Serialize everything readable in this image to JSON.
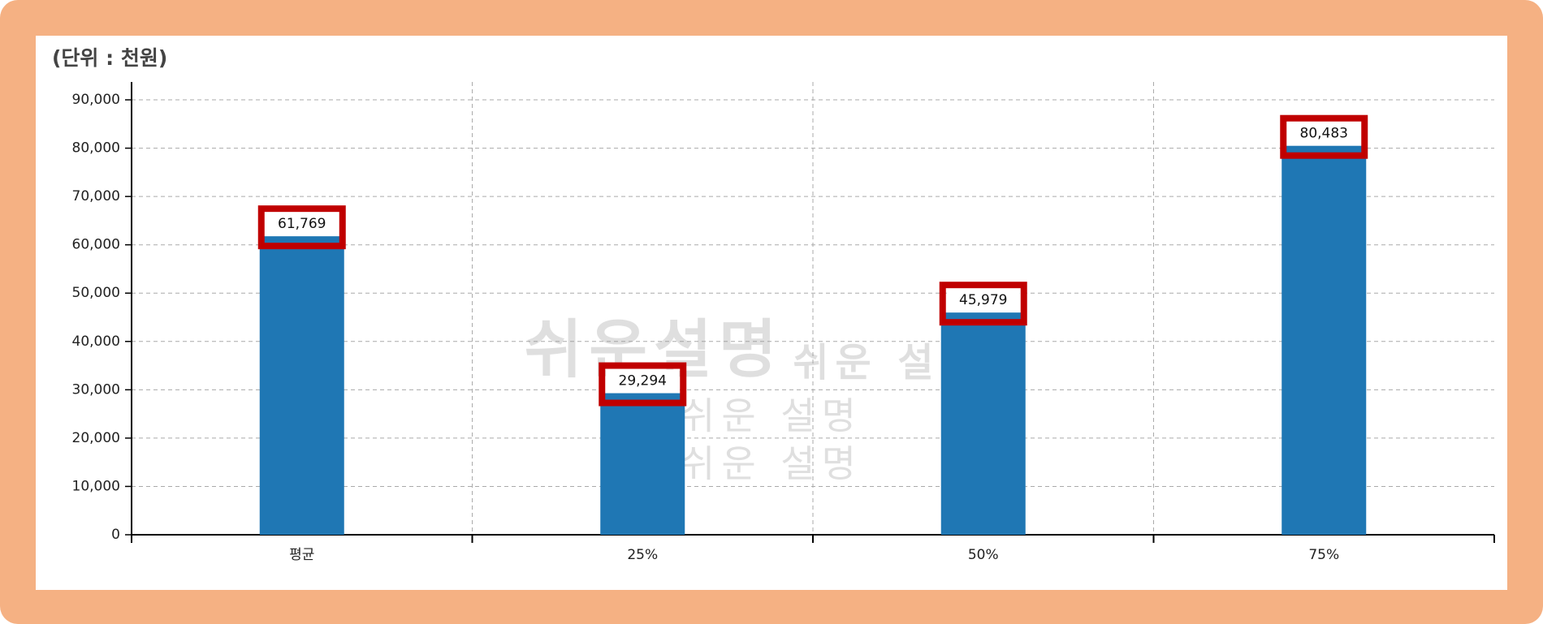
{
  "chart_data": {
    "type": "bar",
    "unit_label": "(단위 : 천원)",
    "categories": [
      "평균",
      "25%",
      "50%",
      "75%"
    ],
    "values": [
      61769,
      29294,
      45979,
      80483
    ],
    "value_labels": [
      "61,769",
      "29,294",
      "45,979",
      "80,483"
    ],
    "color": "#1f77b4",
    "ylim": [
      0,
      93700
    ],
    "yticks": [
      0,
      {
        "value": 10000,
        "label": "10,000"
      },
      {
        "value": 20000,
        "label": "20,000"
      },
      {
        "value": 30000,
        "label": "30,000"
      },
      {
        "value": 40000,
        "label": "40,000"
      },
      {
        "value": 50000,
        "label": "50,000"
      },
      {
        "value": 60000,
        "label": "60,000"
      },
      {
        "value": 70000,
        "label": "70,000"
      },
      {
        "value": 80000,
        "label": "80,000"
      },
      {
        "value": 90000,
        "label": "90,000"
      }
    ],
    "grid": true,
    "watermarks": [
      "쉬운설명",
      "쉬운 설명",
      "쉬운 설명",
      "쉬운 설명"
    ]
  }
}
